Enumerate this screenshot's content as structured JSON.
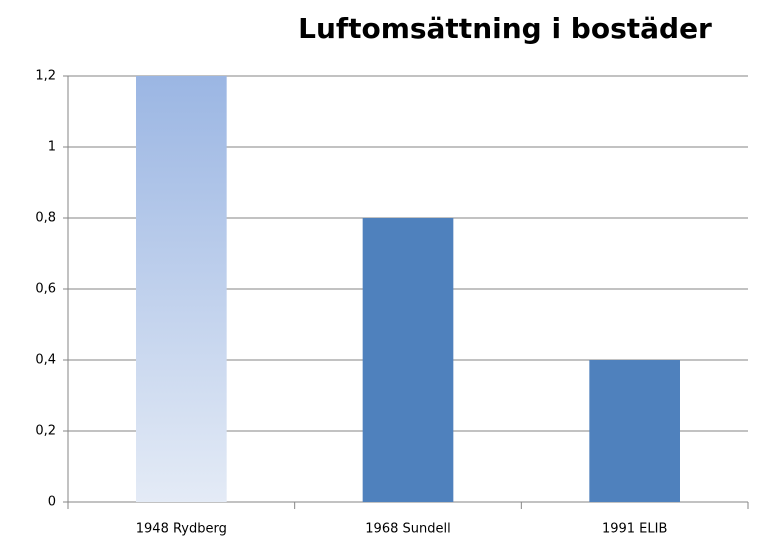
{
  "chart_data": {
    "type": "bar",
    "title": "Luftomsättning i bostäder",
    "categories": [
      "1948 Rydberg",
      "1968 Sundell",
      "1991 ELIB"
    ],
    "values": [
      1.2,
      0.8,
      0.4
    ],
    "colors": [
      "#9bb6e3",
      "#4f81bd",
      "#4f81bd"
    ],
    "ylim": [
      0,
      1.2
    ],
    "yticks": [
      0,
      {
        "value": 0.2,
        "label": "0,2"
      },
      {
        "value": 0.4,
        "label": "0,4"
      },
      {
        "value": 0.6,
        "label": "0,6"
      },
      {
        "value": 0.8,
        "label": "0,8"
      },
      1,
      {
        "value": 1.2,
        "label": "1,2"
      }
    ],
    "grid": true
  }
}
